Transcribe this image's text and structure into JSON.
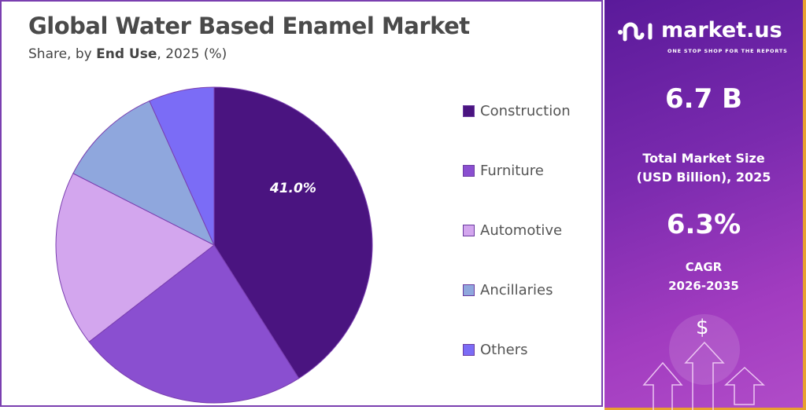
{
  "title": "Global Water Based Enamel Market",
  "subtitle": {
    "prefix": "Share, by ",
    "bold": "End Use",
    "suffix": ", 2025 (%)"
  },
  "chart_data": {
    "type": "pie",
    "categories": [
      "Construction",
      "Furniture",
      "Automotive",
      "Ancillaries",
      "Others"
    ],
    "values": [
      41.0,
      23.5,
      18.0,
      10.8,
      6.7
    ],
    "colors": [
      "#4a1480",
      "#8a4fd0",
      "#d3a6ee",
      "#8fa7dd",
      "#7b6cf6"
    ],
    "data_labels": [
      "41.0%",
      "",
      "",
      "",
      ""
    ],
    "start": "top",
    "direction": "clockwise",
    "legend": "right"
  },
  "brand": {
    "logo_text": "market.us",
    "tagline": "ONE STOP SHOP FOR THE REPORTS"
  },
  "stats": {
    "market_size": "6.7 B",
    "market_size_label_1": "Total Market Size",
    "market_size_label_2": "(USD Billion), 2025",
    "cagr": "6.3%",
    "cagr_label_1": "CAGR",
    "cagr_label_2": "2026-2035",
    "currency_symbol": "$"
  }
}
